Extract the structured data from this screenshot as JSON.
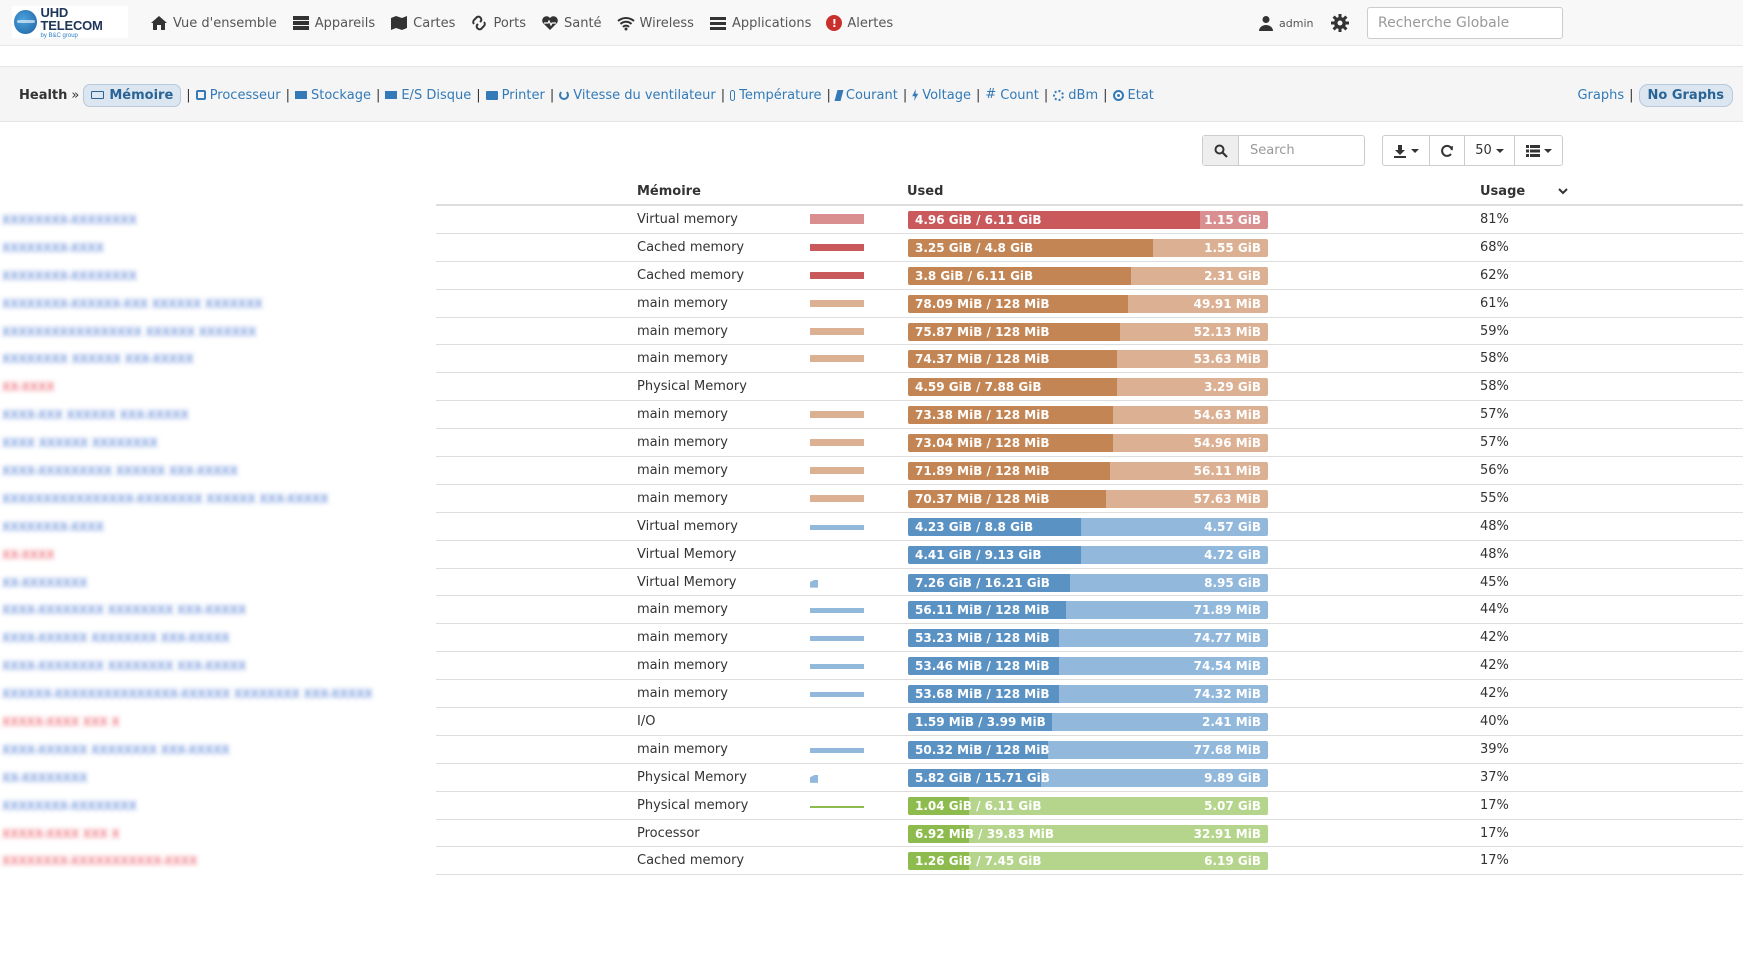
{
  "colors": {
    "red": "#c9595b",
    "red_free": "#d98f90",
    "brown": "#c38553",
    "brown_free": "#dbb093",
    "blue": "#5b92c4",
    "blue_free": "#92b8dc",
    "green": "#8dbb4d",
    "green_free": "#b5d48c",
    "link": "#337ab7"
  },
  "brand": {
    "title": "UHD TELECOM",
    "sub": "by B&C group"
  },
  "nav": [
    {
      "label": "Vue d'ensemble",
      "icon": "home-icon"
    },
    {
      "label": "Appareils",
      "icon": "server-icon"
    },
    {
      "label": "Cartes",
      "icon": "map-icon"
    },
    {
      "label": "Ports",
      "icon": "link-icon"
    },
    {
      "label": "Santé",
      "icon": "heartbeat-icon"
    },
    {
      "label": "Wireless",
      "icon": "wifi-icon"
    },
    {
      "label": "Applications",
      "icon": "tasks-icon"
    },
    {
      "label": "Alertes",
      "icon": "alert-icon"
    }
  ],
  "user": {
    "name": "admin"
  },
  "global_search": {
    "placeholder": "Recherche Globale"
  },
  "health": {
    "title": "Health",
    "arrow": "»",
    "active": "Mémoire",
    "links": [
      "Processeur",
      "Stockage",
      "E/S Disque",
      "Printer",
      "Vitesse du ventilateur",
      "Température",
      "Courant",
      "Voltage",
      "Count",
      "dBm",
      "Etat"
    ],
    "graphs": "Graphs",
    "no_graphs": "No Graphs"
  },
  "toolbar": {
    "search_placeholder": "Search",
    "page_size": "50"
  },
  "columns": {
    "memoire": "Mémoire",
    "used": "Used",
    "usage": "Usage"
  },
  "rows": [
    {
      "host_color": "#3366cc",
      "host": "XXXXXXXX-XXXXXXXX",
      "desc": "Virtual memory",
      "spark": "bar",
      "used": "4.96 GiB / 6.11 GiB",
      "free": "1.15 GiB",
      "pct": "81%",
      "pct_value": 81,
      "color": "red"
    },
    {
      "host_color": "#3366cc",
      "host": "XXXXXXXX-XXXX",
      "desc": "Cached memory",
      "spark": "bar",
      "used": "3.25 GiB / 4.8 GiB",
      "free": "1.55 GiB",
      "pct": "68%",
      "pct_value": 68,
      "color": "brown"
    },
    {
      "host_color": "#3366cc",
      "host": "XXXXXXXX-XXXXXXXX",
      "desc": "Cached memory",
      "spark": "bar",
      "used": "3.8 GiB / 6.11 GiB",
      "free": "2.31 GiB",
      "pct": "62%",
      "pct_value": 62,
      "color": "brown"
    },
    {
      "host_color": "#3366cc",
      "host": "XXXXXXXX-XXXXXX-XXX  XXXXXX  XXXXXXX",
      "desc": "main memory",
      "spark": "bar",
      "used": "78.09 MiB / 128 MiB",
      "free": "49.91 MiB",
      "pct": "61%",
      "pct_value": 61,
      "color": "brown"
    },
    {
      "host_color": "#3366cc",
      "host": "XXXXXXXXXXXXXXXXX  XXXXXX  XXXXXXX",
      "desc": "main memory",
      "spark": "bar",
      "used": "75.87 MiB / 128 MiB",
      "free": "52.13 MiB",
      "pct": "59%",
      "pct_value": 59,
      "color": "brown"
    },
    {
      "host_color": "#3366cc",
      "host": "XXXXXXXX  XXXXXX  XXX-XXXXX",
      "desc": "main memory",
      "spark": "bar",
      "used": "74.37 MiB / 128 MiB",
      "free": "53.63 MiB",
      "pct": "58%",
      "pct_value": 58,
      "color": "brown"
    },
    {
      "host_color": "#e63946",
      "host": "XX-XXXX",
      "desc": "Physical Memory",
      "spark": "none",
      "used": "4.59 GiB / 7.88 GiB",
      "free": "3.29 GiB",
      "pct": "58%",
      "pct_value": 58,
      "color": "brown"
    },
    {
      "host_color": "#3366cc",
      "host": "XXXX-XXX  XXXXXX  XXX-XXXXX",
      "desc": "main memory",
      "spark": "bar",
      "used": "73.38 MiB / 128 MiB",
      "free": "54.63 MiB",
      "pct": "57%",
      "pct_value": 57,
      "color": "brown"
    },
    {
      "host_color": "#3366cc",
      "host": "XXXX  XXXXXX  XXXXXXXX",
      "desc": "main memory",
      "spark": "bar",
      "used": "73.04 MiB / 128 MiB",
      "free": "54.96 MiB",
      "pct": "57%",
      "pct_value": 57,
      "color": "brown"
    },
    {
      "host_color": "#3366cc",
      "host": "XXXX-XXXXXXXXX  XXXXXX  XXX-XXXXX",
      "desc": "main memory",
      "spark": "bar",
      "used": "71.89 MiB / 128 MiB",
      "free": "56.11 MiB",
      "pct": "56%",
      "pct_value": 56,
      "color": "brown"
    },
    {
      "host_color": "#3366cc",
      "host": "XXXXXXXXXXXXXXXX-XXXXXXXX  XXXXXX  XXX-XXXXX",
      "desc": "main memory",
      "spark": "bar",
      "used": "70.37 MiB / 128 MiB",
      "free": "57.63 MiB",
      "pct": "55%",
      "pct_value": 55,
      "color": "brown"
    },
    {
      "host_color": "#3366cc",
      "host": "XXXXXXXX-XXXX",
      "desc": "Virtual memory",
      "spark": "bar",
      "used": "4.23 GiB / 8.8 GiB",
      "free": "4.57 GiB",
      "pct": "48%",
      "pct_value": 48,
      "color": "blue"
    },
    {
      "host_color": "#e63946",
      "host": "XX-XXXX",
      "desc": "Virtual Memory",
      "spark": "none",
      "used": "4.41 GiB / 9.13 GiB",
      "free": "4.72 GiB",
      "pct": "48%",
      "pct_value": 48,
      "color": "blue"
    },
    {
      "host_color": "#3366cc",
      "host": "XX-XXXXXXXX",
      "desc": "Virtual Memory",
      "spark": "dot",
      "used": "7.26 GiB / 16.21 GiB",
      "free": "8.95 GiB",
      "pct": "45%",
      "pct_value": 45,
      "color": "blue"
    },
    {
      "host_color": "#3366cc",
      "host": "XXXX-XXXXXXXX  XXXXXXXX  XXX-XXXXX",
      "desc": "main memory",
      "spark": "bar",
      "used": "56.11 MiB / 128 MiB",
      "free": "71.89 MiB",
      "pct": "44%",
      "pct_value": 44,
      "color": "blue"
    },
    {
      "host_color": "#3366cc",
      "host": "XXXX-XXXXXX  XXXXXXXX  XXX-XXXXX",
      "desc": "main memory",
      "spark": "bar",
      "used": "53.23 MiB / 128 MiB",
      "free": "74.77 MiB",
      "pct": "42%",
      "pct_value": 42,
      "color": "blue"
    },
    {
      "host_color": "#3366cc",
      "host": "XXXX-XXXXXXXX  XXXXXXXX  XXX-XXXXX",
      "desc": "main memory",
      "spark": "bar",
      "used": "53.46 MiB / 128 MiB",
      "free": "74.54 MiB",
      "pct": "42%",
      "pct_value": 42,
      "color": "blue"
    },
    {
      "host_color": "#3366cc",
      "host": "XXXXXX-XXXXXXXXXXXXXXX-XXXXXX  XXXXXXXX  XXX-XXXXX",
      "desc": "main memory",
      "spark": "bar",
      "used": "53.68 MiB / 128 MiB",
      "free": "74.32 MiB",
      "pct": "42%",
      "pct_value": 42,
      "color": "blue"
    },
    {
      "host_color": "#e63946",
      "host": "XXXXX-XXXX  XXX  X",
      "desc": "I/O",
      "spark": "none",
      "used": "1.59 MiB / 3.99 MiB",
      "free": "2.41 MiB",
      "pct": "40%",
      "pct_value": 40,
      "color": "blue"
    },
    {
      "host_color": "#3366cc",
      "host": "XXXX-XXXXXX  XXXXXXXX  XXX-XXXXX",
      "desc": "main memory",
      "spark": "bar",
      "used": "50.32 MiB / 128 MiB",
      "free": "77.68 MiB",
      "pct": "39%",
      "pct_value": 39,
      "color": "blue"
    },
    {
      "host_color": "#3366cc",
      "host": "XX-XXXXXXXX",
      "desc": "Physical Memory",
      "spark": "dot",
      "used": "5.82 GiB / 15.71 GiB",
      "free": "9.89 GiB",
      "pct": "37%",
      "pct_value": 37,
      "color": "blue"
    },
    {
      "host_color": "#3366cc",
      "host": "XXXXXXXX-XXXXXXXX",
      "desc": "Physical memory",
      "spark": "line",
      "used": "1.04 GiB / 6.11 GiB",
      "free": "5.07 GiB",
      "pct": "17%",
      "pct_value": 17,
      "color": "green"
    },
    {
      "host_color": "#e63946",
      "host": "XXXXX-XXXX  XXX  X",
      "desc": "Processor",
      "spark": "none",
      "used": "6.92 MiB / 39.83 MiB",
      "free": "32.91 MiB",
      "pct": "17%",
      "pct_value": 17,
      "color": "green"
    },
    {
      "host_color": "#e63946",
      "host": "XXXXXXXX-XXXXXXXXXXX-XXXX",
      "desc": "Cached memory",
      "spark": "none",
      "used": "1.26 GiB / 7.45 GiB",
      "free": "6.19 GiB",
      "pct": "17%",
      "pct_value": 17,
      "color": "green"
    }
  ]
}
